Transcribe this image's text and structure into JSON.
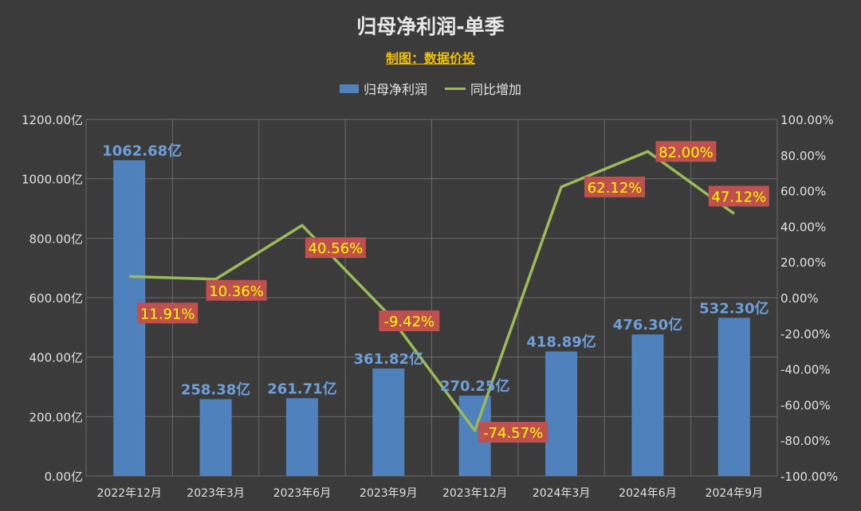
{
  "title": "归母净利润-单季",
  "subtitle": "制图：数据价投",
  "colors": {
    "bar": "#4f81bd",
    "line": "#9bbb59",
    "label_bg": "#c0504d",
    "label_text": "#ffff00",
    "bar_label": "#6d9fd9",
    "axis_text": "#e0e0e0",
    "grid": "#6a6a6a"
  },
  "chart_data": {
    "type": "bar+line",
    "categories": [
      "2022年12月",
      "2023年3月",
      "2023年6月",
      "2023年9月",
      "2023年12月",
      "2024年3月",
      "2024年6月",
      "2024年9月"
    ],
    "series": [
      {
        "name": "归母净利润",
        "type": "bar",
        "axis": "left",
        "values": [
          1062.68,
          258.38,
          261.71,
          361.82,
          270.25,
          418.89,
          476.3,
          532.3
        ],
        "labels": [
          "1062.68亿",
          "258.38亿",
          "261.71亿",
          "361.82亿",
          "270.25亿",
          "418.89亿",
          "476.30亿",
          "532.30亿"
        ]
      },
      {
        "name": "同比增加",
        "type": "line",
        "axis": "right",
        "values": [
          11.91,
          10.36,
          40.56,
          -9.42,
          -74.57,
          62.12,
          82.0,
          47.12
        ],
        "labels": [
          "11.91%",
          "10.36%",
          "40.56%",
          "-9.42%",
          "-74.57%",
          "62.12%",
          "82.00%",
          "47.12%"
        ]
      }
    ],
    "y_left": {
      "min": 0,
      "max": 1200,
      "ticks": [
        "0.00亿",
        "200.00亿",
        "400.00亿",
        "600.00亿",
        "800.00亿",
        "1000.00亿",
        "1200.00亿"
      ]
    },
    "y_right": {
      "min": -100,
      "max": 100,
      "ticks": [
        "-100.00%",
        "-80.00%",
        "-60.00%",
        "-40.00%",
        "-20.00%",
        "0.00%",
        "20.00%",
        "40.00%",
        "60.00%",
        "80.00%",
        "100.00%"
      ]
    },
    "grid": true,
    "legend": "top-center"
  }
}
